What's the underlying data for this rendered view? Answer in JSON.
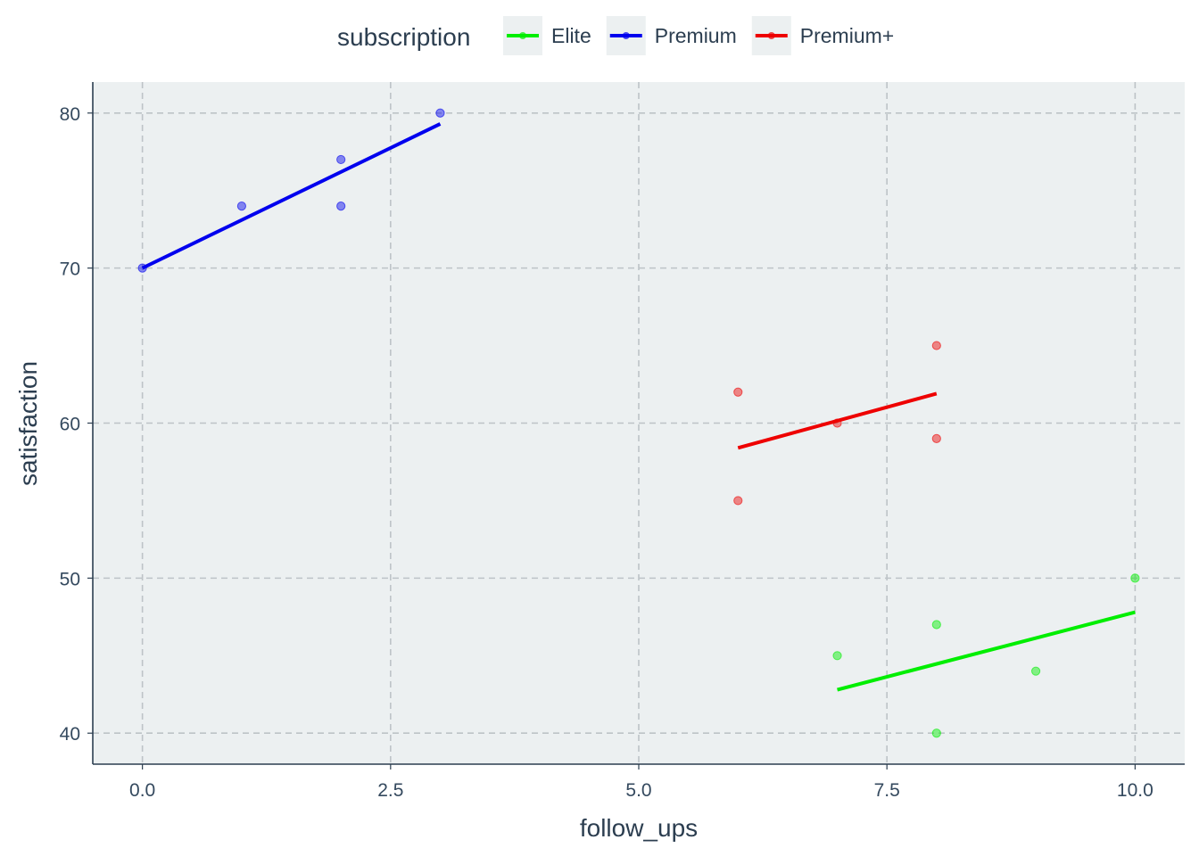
{
  "chart_data": {
    "type": "scatter",
    "xlabel": "follow_ups",
    "ylabel": "satisfaction",
    "xlim": [
      -0.5,
      10.5
    ],
    "ylim": [
      38,
      82
    ],
    "x_ticks": [
      0,
      2.5,
      5,
      7.5,
      10
    ],
    "x_tick_labels": [
      "0.0",
      "2.5",
      "5.0",
      "7.5",
      "10.0"
    ],
    "y_ticks": [
      40,
      50,
      60,
      70,
      80
    ],
    "y_tick_labels": [
      "40",
      "50",
      "60",
      "70",
      "80"
    ],
    "grid": true,
    "legend": {
      "title": "subscription",
      "position": "top"
    },
    "series": [
      {
        "name": "Elite",
        "color": "#00ee00",
        "points": [
          {
            "x": 7,
            "y": 45
          },
          {
            "x": 8,
            "y": 47
          },
          {
            "x": 8,
            "y": 40
          },
          {
            "x": 9,
            "y": 44
          },
          {
            "x": 10,
            "y": 50
          }
        ],
        "fit": {
          "x": [
            7,
            10
          ],
          "y": [
            42.8,
            47.8
          ]
        }
      },
      {
        "name": "Premium",
        "color": "#0000ee",
        "points": [
          {
            "x": 0,
            "y": 70
          },
          {
            "x": 1,
            "y": 74
          },
          {
            "x": 2,
            "y": 77
          },
          {
            "x": 2,
            "y": 74
          },
          {
            "x": 3,
            "y": 80
          }
        ],
        "fit": {
          "x": [
            0,
            3
          ],
          "y": [
            70.0,
            79.3
          ]
        }
      },
      {
        "name": "Premium+",
        "color": "#ee0000",
        "points": [
          {
            "x": 6,
            "y": 62
          },
          {
            "x": 6,
            "y": 55
          },
          {
            "x": 7,
            "y": 60
          },
          {
            "x": 8,
            "y": 65
          },
          {
            "x": 8,
            "y": 59
          }
        ],
        "fit": {
          "x": [
            6,
            8
          ],
          "y": [
            58.4,
            61.9
          ]
        }
      }
    ]
  }
}
